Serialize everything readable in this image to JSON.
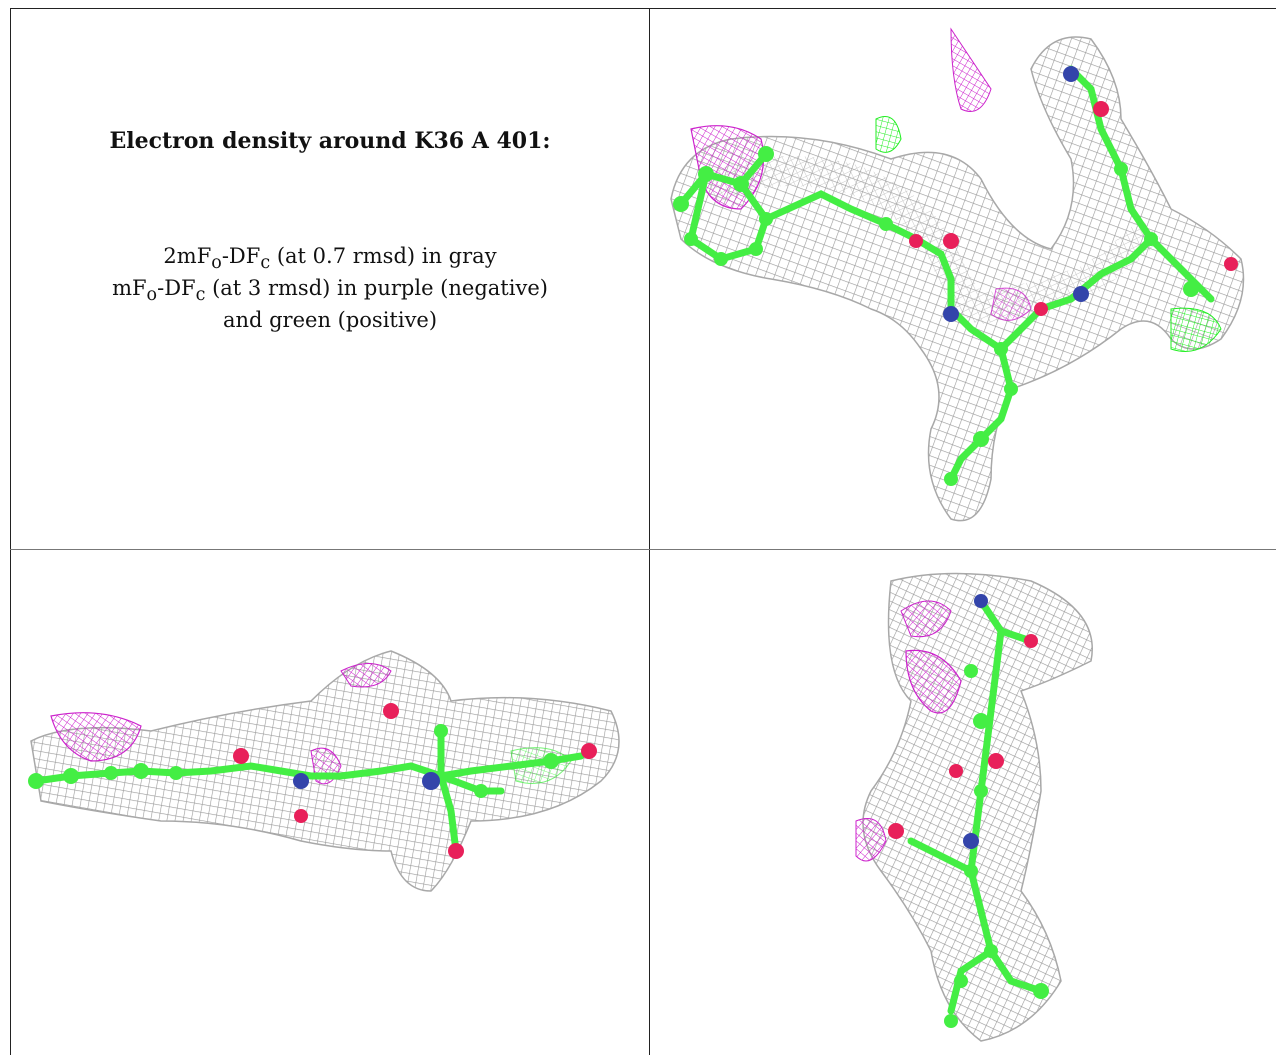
{
  "caption": {
    "title": "Electron density around K36 A 401:",
    "line1": "2mFo-DFc (at 0.7 rmsd) in gray",
    "line2": "mFo-DFc (at 3 rmsd) in purple (negative)",
    "line3": "and green (positive)"
  },
  "colors": {
    "mesh_2fofc": "#9a9a9a",
    "mesh_negative": "#cc22cc",
    "mesh_positive": "#22ee22",
    "carbon": "#44ee44",
    "nitrogen": "#3344aa",
    "oxygen": "#e8205a"
  },
  "panels": [
    {
      "name": "density-view-top-right"
    },
    {
      "name": "density-view-bottom-left"
    },
    {
      "name": "density-view-bottom-right"
    }
  ]
}
